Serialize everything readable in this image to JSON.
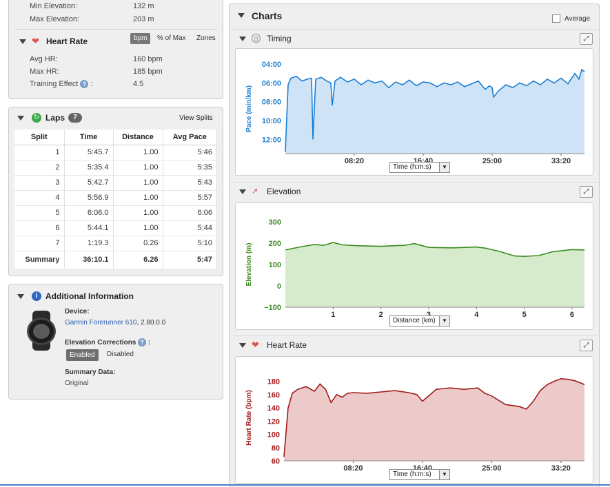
{
  "elevation_stats": {
    "min_label": "Min Elevation:",
    "min_value": "132 m",
    "max_label": "Max Elevation:",
    "max_value": "203 m"
  },
  "heart_rate": {
    "title": "Heart Rate",
    "units": [
      "bpm",
      "% of Max",
      "Zones"
    ],
    "avg_label": "Avg HR:",
    "avg_value": "160 bpm",
    "max_label": "Max HR:",
    "max_value": "185 bpm",
    "te_label": "Training Effect",
    "te_value": "4.5"
  },
  "laps": {
    "title": "Laps",
    "count": "7",
    "view_splits": "View Splits",
    "columns": [
      "Split",
      "Time",
      "Distance",
      "Avg Pace"
    ],
    "rows": [
      [
        "1",
        "5:45.7",
        "1.00",
        "5:46"
      ],
      [
        "2",
        "5:35.4",
        "1.00",
        "5:35"
      ],
      [
        "3",
        "5:42.7",
        "1.00",
        "5:43"
      ],
      [
        "4",
        "5:56.9",
        "1.00",
        "5:57"
      ],
      [
        "5",
        "6:06.0",
        "1.00",
        "6:06"
      ],
      [
        "6",
        "5:44.1",
        "1.00",
        "5:44"
      ],
      [
        "7",
        "1:19.3",
        "0.26",
        "5:10"
      ]
    ],
    "summary": [
      "Summary",
      "36:10.1",
      "6.26",
      "5:47"
    ]
  },
  "additional": {
    "title": "Additional Information",
    "device_label": "Device:",
    "device_name": "Garmin Forerunner 610",
    "device_version": ", 2.80.0.0",
    "elev_corr_label": "Elevation Corrections",
    "enabled": "Enabled",
    "disabled": "Disabled",
    "summary_label": "Summary Data:",
    "summary_value": "Original"
  },
  "charts_panel": {
    "title": "Charts",
    "average_label": "Average"
  },
  "colors": {
    "pace": "#1a7fd4",
    "pace_fill": "#cfe3f7",
    "elev": "#3a8a1e",
    "elev_fill": "#d6ebcc",
    "hr": "#a01818",
    "hr_fill": "#eccaca"
  },
  "chart_data": [
    {
      "type": "area",
      "title": "Timing",
      "ylabel": "Pace (min/km)",
      "xlabel": "Time (h:m:s)",
      "y_ticks": [
        "04:00",
        "06:00",
        "08:00",
        "10:00",
        "12:00"
      ],
      "x_ticks": [
        "08:20",
        "16:40",
        "25:00",
        "33:20"
      ],
      "ylim": [
        13.5,
        4.0
      ],
      "xlim": [
        0,
        2170
      ],
      "x": [
        0,
        20,
        40,
        80,
        120,
        160,
        190,
        200,
        220,
        260,
        300,
        330,
        340,
        360,
        400,
        450,
        500,
        550,
        600,
        650,
        700,
        750,
        800,
        850,
        900,
        950,
        1000,
        1050,
        1100,
        1150,
        1200,
        1250,
        1300,
        1350,
        1400,
        1450,
        1480,
        1500,
        1510,
        1550,
        1600,
        1650,
        1700,
        1750,
        1800,
        1850,
        1900,
        1950,
        2000,
        2050,
        2100,
        2130,
        2150,
        2170
      ],
      "y": [
        13.3,
        6.2,
        5.5,
        5.3,
        5.8,
        5.6,
        5.5,
        12.0,
        5.6,
        5.4,
        5.8,
        6.0,
        8.4,
        5.8,
        5.4,
        5.9,
        5.6,
        6.2,
        5.7,
        6.0,
        5.8,
        6.5,
        5.9,
        6.2,
        5.7,
        6.3,
        5.9,
        6.0,
        6.4,
        6.0,
        6.2,
        5.9,
        6.4,
        6.1,
        5.8,
        6.7,
        6.3,
        6.5,
        7.5,
        6.8,
        6.2,
        6.5,
        6.0,
        6.3,
        5.8,
        6.2,
        5.6,
        6.0,
        5.5,
        6.1,
        5.0,
        5.6,
        4.6,
        4.8
      ]
    },
    {
      "type": "area",
      "title": "Elevation",
      "ylabel": "Elevation (m)",
      "xlabel": "Distance (km)",
      "y_ticks": [
        "300",
        "200",
        "100",
        "0",
        "−100"
      ],
      "x_ticks": [
        "1",
        "2",
        "3",
        "4",
        "5",
        "6"
      ],
      "ylim": [
        -100,
        300
      ],
      "xlim": [
        0,
        6.26
      ],
      "x": [
        0,
        0.3,
        0.6,
        0.8,
        1.0,
        1.2,
        1.5,
        2.0,
        2.5,
        2.7,
        3.0,
        3.5,
        4.0,
        4.2,
        4.5,
        4.8,
        5.0,
        5.3,
        5.6,
        6.0,
        6.26
      ],
      "y": [
        168,
        182,
        194,
        190,
        203,
        192,
        188,
        185,
        190,
        198,
        180,
        178,
        182,
        176,
        160,
        140,
        138,
        142,
        160,
        170,
        168
      ]
    },
    {
      "type": "area",
      "title": "Heart Rate",
      "ylabel": "Heart Rate (bpm)",
      "xlabel": "Time (h:m:s)",
      "y_ticks": [
        "180",
        "160",
        "140",
        "120",
        "100",
        "80",
        "60"
      ],
      "x_ticks": [
        "08:20",
        "16:40",
        "25:00",
        "33:20"
      ],
      "ylim": [
        60,
        190
      ],
      "xlim": [
        0,
        2170
      ],
      "x": [
        0,
        30,
        60,
        100,
        160,
        220,
        260,
        300,
        340,
        380,
        420,
        460,
        500,
        600,
        700,
        800,
        900,
        960,
        1000,
        1100,
        1200,
        1300,
        1400,
        1450,
        1500,
        1600,
        1700,
        1750,
        1800,
        1850,
        1900,
        1950,
        2000,
        2050,
        2100,
        2150,
        2170
      ],
      "y": [
        66,
        140,
        162,
        168,
        172,
        165,
        176,
        168,
        148,
        160,
        156,
        162,
        163,
        162,
        164,
        166,
        163,
        160,
        150,
        168,
        170,
        168,
        170,
        162,
        158,
        145,
        142,
        138,
        150,
        166,
        175,
        180,
        184,
        183,
        181,
        177,
        175
      ]
    }
  ]
}
